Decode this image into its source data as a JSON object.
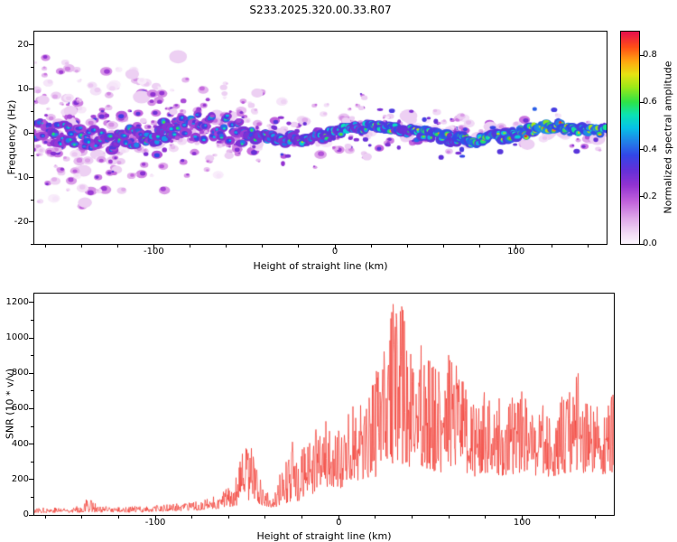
{
  "title": "S233.2025.320.00.33.R07",
  "chart_data": [
    {
      "type": "heatmap",
      "name": "spectrogram",
      "title": "S233.2025.320.00.33.R07",
      "xlabel": "Height of straight line (km)",
      "ylabel": "Frequency (Hz)",
      "xlim": [
        -166,
        150
      ],
      "ylim": [
        -25,
        23
      ],
      "xticks": [
        -100,
        0,
        100
      ],
      "xminor_step": 20,
      "yticks": [
        -20,
        -10,
        0,
        10,
        20
      ],
      "yminor_step": 5,
      "grid": false,
      "colorbar": {
        "label": "Normalized spectral amplitude",
        "tick_values": [
          0,
          0.2,
          0.4,
          0.6,
          0.8
        ],
        "tick_labels": [
          "0.0",
          "0.2",
          "0.4",
          "0.6",
          "0.8"
        ],
        "vmin": 0,
        "vmax": 0.9,
        "position": "right"
      },
      "colormap_stops": [
        [
          0.0,
          "#fdf7fe"
        ],
        [
          0.05,
          "#f2dcf6"
        ],
        [
          0.12,
          "#dfa9ea"
        ],
        [
          0.2,
          "#c263dc"
        ],
        [
          0.28,
          "#9232d2"
        ],
        [
          0.35,
          "#6330d8"
        ],
        [
          0.42,
          "#3346e8"
        ],
        [
          0.49,
          "#1f86e8"
        ],
        [
          0.55,
          "#06c3e6"
        ],
        [
          0.61,
          "#0be3b4"
        ],
        [
          0.67,
          "#2ee348"
        ],
        [
          0.74,
          "#9ce818"
        ],
        [
          0.8,
          "#e6e312"
        ],
        [
          0.86,
          "#ffa910"
        ],
        [
          0.93,
          "#ff4d17"
        ],
        [
          1.0,
          "#e8104c"
        ]
      ],
      "band": {
        "description": "Signal track centered near 0 Hz; core spectral amplitude increases with height, cores cyan at low heights and green/yellow/orange at high heights",
        "center_frequency_hz": 0,
        "heights_km": [
          -166,
          -150,
          -130,
          -110,
          -90,
          -70,
          -50,
          -30,
          -10,
          10,
          30,
          50,
          70,
          90,
          110,
          130,
          150
        ],
        "peak_amplitude": [
          0.5,
          0.52,
          0.5,
          0.55,
          0.55,
          0.5,
          0.55,
          0.6,
          0.62,
          0.65,
          0.68,
          0.7,
          0.72,
          0.75,
          0.78,
          0.8,
          0.8
        ]
      },
      "noise": {
        "description": "Scattered low-amplitude purple speckle, densest and widest in frequency at low heights, narrowing toward high heights",
        "regions": [
          {
            "x0": -166,
            "x1": -120,
            "density": 1.3,
            "yspread": 22
          },
          {
            "x0": -120,
            "x1": -80,
            "density": 1.05,
            "yspread": 20
          },
          {
            "x0": -80,
            "x1": -40,
            "density": 0.8,
            "yspread": 15
          },
          {
            "x0": -40,
            "x1": 20,
            "density": 0.5,
            "yspread": 10
          },
          {
            "x0": 20,
            "x1": 90,
            "density": 0.38,
            "yspread": 7
          },
          {
            "x0": 90,
            "x1": 150,
            "density": 0.3,
            "yspread": 5
          }
        ],
        "amplitude_range": [
          0.03,
          0.35
        ]
      },
      "seed": 1320
    },
    {
      "type": "line",
      "name": "snr",
      "xlabel": "Height of straight line (km)",
      "ylabel": "SNR (10 * v/v)",
      "xlim": [
        -166,
        150
      ],
      "ylim": [
        0,
        1250
      ],
      "xticks": [
        -100,
        0,
        100
      ],
      "xminor_step": 20,
      "yticks": [
        0,
        200,
        400,
        600,
        800,
        1000,
        1200
      ],
      "yminor_step": 100,
      "line_color": "#f23c33",
      "envelope": {
        "x": [
          -166,
          -150,
          -140,
          -136,
          -132,
          -120,
          -110,
          -100,
          -90,
          -80,
          -72,
          -65,
          -60,
          -55,
          -52,
          -48,
          -45,
          -42,
          -38,
          -35,
          -32,
          -30,
          -28,
          -25,
          -22,
          -20,
          -15,
          -10,
          -5,
          0,
          5,
          10,
          15,
          20,
          25,
          30,
          33,
          36,
          40,
          45,
          50,
          55,
          60,
          65,
          70,
          75,
          80,
          85,
          90,
          95,
          100,
          105,
          110,
          115,
          120,
          125,
          130,
          135,
          140,
          145,
          150
        ],
        "max": [
          40,
          45,
          50,
          130,
          50,
          45,
          50,
          55,
          65,
          70,
          90,
          120,
          160,
          260,
          380,
          430,
          300,
          160,
          120,
          110,
          280,
          200,
          350,
          420,
          300,
          380,
          420,
          560,
          520,
          480,
          600,
          760,
          650,
          820,
          950,
          1230,
          1150,
          1220,
          900,
          1000,
          950,
          800,
          1050,
          820,
          700,
          640,
          720,
          680,
          640,
          700,
          720,
          600,
          640,
          580,
          660,
          700,
          820,
          640,
          660,
          600,
          700
        ],
        "min": [
          12,
          12,
          14,
          16,
          14,
          14,
          14,
          16,
          20,
          22,
          28,
          34,
          42,
          55,
          70,
          90,
          70,
          52,
          45,
          40,
          55,
          50,
          65,
          85,
          75,
          95,
          115,
          145,
          155,
          145,
          175,
          195,
          195,
          215,
          245,
          295,
          275,
          295,
          245,
          275,
          255,
          235,
          275,
          245,
          225,
          215,
          235,
          225,
          215,
          225,
          235,
          215,
          225,
          215,
          225,
          235,
          255,
          225,
          235,
          225,
          245
        ]
      },
      "seed": 77
    }
  ]
}
